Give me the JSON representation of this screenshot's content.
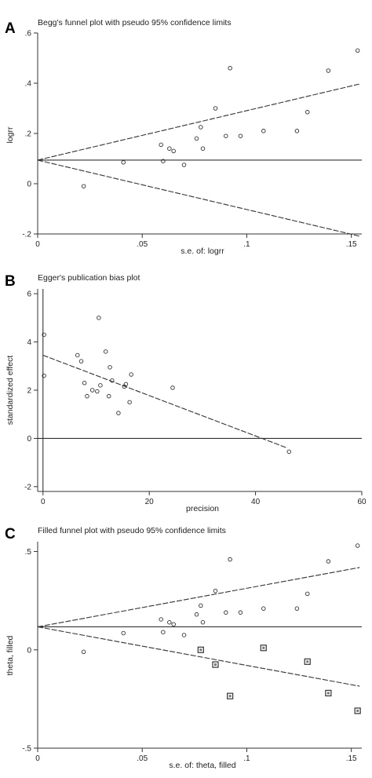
{
  "chart_data": [
    {
      "type": "scatter",
      "panel_label": "A",
      "title": "Begg's funnel plot with pseudo 95% confidence limits",
      "xlabel": "s.e. of: logrr",
      "ylabel": "logrr",
      "xlim": [
        0,
        0.155
      ],
      "ylim": [
        -0.2,
        0.6
      ],
      "xticks": [
        0,
        0.05,
        0.1,
        0.15
      ],
      "xtick_labels": [
        "0",
        ".05",
        ".1",
        ".15"
      ],
      "yticks": [
        -0.2,
        0,
        0.2,
        0.4,
        0.6
      ],
      "ytick_labels": [
        "-.2",
        "0",
        ".2",
        ".4",
        ".6"
      ],
      "series": [
        {
          "marker": "hollow-circle",
          "points": [
            {
              "x": 0.022,
              "y": -0.01
            },
            {
              "x": 0.041,
              "y": 0.085
            },
            {
              "x": 0.059,
              "y": 0.155
            },
            {
              "x": 0.06,
              "y": 0.09
            },
            {
              "x": 0.063,
              "y": 0.14
            },
            {
              "x": 0.065,
              "y": 0.13
            },
            {
              "x": 0.07,
              "y": 0.075
            },
            {
              "x": 0.076,
              "y": 0.18
            },
            {
              "x": 0.078,
              "y": 0.225
            },
            {
              "x": 0.079,
              "y": 0.14
            },
            {
              "x": 0.085,
              "y": 0.3
            },
            {
              "x": 0.09,
              "y": 0.19
            },
            {
              "x": 0.092,
              "y": 0.46
            },
            {
              "x": 0.097,
              "y": 0.19
            },
            {
              "x": 0.108,
              "y": 0.21
            },
            {
              "x": 0.124,
              "y": 0.21
            },
            {
              "x": 0.129,
              "y": 0.285
            },
            {
              "x": 0.139,
              "y": 0.45
            },
            {
              "x": 0.153,
              "y": 0.53
            }
          ]
        }
      ],
      "reference_lines": [
        {
          "style": "solid",
          "from": [
            0,
            0.094
          ],
          "to": [
            0.155,
            0.094
          ]
        },
        {
          "style": "dashed",
          "from": [
            0,
            0.094
          ],
          "to": [
            0.154,
            0.397
          ]
        },
        {
          "style": "dashed",
          "from": [
            0,
            0.094
          ],
          "to": [
            0.154,
            -0.209
          ]
        }
      ]
    },
    {
      "type": "scatter",
      "panel_label": "B",
      "title": "Egger's publication bias plot",
      "xlabel": "precision",
      "ylabel": "standardized effect",
      "xlim": [
        -1,
        60
      ],
      "ylim": [
        -2.2,
        6.2
      ],
      "xticks": [
        0,
        20,
        40,
        60
      ],
      "xtick_labels": [
        "0",
        "20",
        "40",
        "60"
      ],
      "yticks": [
        -2,
        0,
        2,
        4,
        6
      ],
      "ytick_labels": [
        "-2",
        "0",
        "2",
        "4",
        "6"
      ],
      "series": [
        {
          "marker": "hollow-circle",
          "points": [
            {
              "x": 0.2,
              "y": 4.3
            },
            {
              "x": 0.2,
              "y": 2.6
            },
            {
              "x": 6.5,
              "y": 3.45
            },
            {
              "x": 7.2,
              "y": 3.2
            },
            {
              "x": 7.8,
              "y": 2.3
            },
            {
              "x": 8.3,
              "y": 1.75
            },
            {
              "x": 9.3,
              "y": 2.0
            },
            {
              "x": 10.2,
              "y": 1.95
            },
            {
              "x": 10.8,
              "y": 2.2
            },
            {
              "x": 10.5,
              "y": 5.0
            },
            {
              "x": 11.8,
              "y": 3.6
            },
            {
              "x": 12.6,
              "y": 2.95
            },
            {
              "x": 13.0,
              "y": 2.4
            },
            {
              "x": 12.4,
              "y": 1.75
            },
            {
              "x": 14.2,
              "y": 1.05
            },
            {
              "x": 15.3,
              "y": 2.15
            },
            {
              "x": 15.6,
              "y": 2.25
            },
            {
              "x": 16.3,
              "y": 1.5
            },
            {
              "x": 16.6,
              "y": 2.65
            },
            {
              "x": 24.4,
              "y": 2.1
            },
            {
              "x": 46.3,
              "y": -0.55
            }
          ]
        }
      ],
      "reference_lines": [
        {
          "style": "solid",
          "from": [
            -1,
            0
          ],
          "to": [
            60,
            0
          ]
        },
        {
          "style": "solid",
          "from": [
            0,
            -2.2
          ],
          "to": [
            0,
            6.2
          ]
        },
        {
          "style": "dashed",
          "from": [
            0,
            3.45
          ],
          "to": [
            46,
            -0.4
          ]
        }
      ]
    },
    {
      "type": "scatter",
      "panel_label": "C",
      "title": "Filled funnel plot with pseudo 95% confidence limits",
      "xlabel": "s.e. of: theta, filled",
      "ylabel": "theta, filled",
      "xlim": [
        0,
        0.155
      ],
      "ylim": [
        -0.5,
        0.55
      ],
      "xticks": [
        0,
        0.05,
        0.1,
        0.15
      ],
      "xtick_labels": [
        "0",
        ".05",
        ".1",
        ".15"
      ],
      "yticks": [
        -0.5,
        0,
        0.5
      ],
      "ytick_labels": [
        "-.5",
        "0",
        ".5"
      ],
      "series": [
        {
          "marker": "hollow-circle",
          "points": [
            {
              "x": 0.022,
              "y": -0.01
            },
            {
              "x": 0.041,
              "y": 0.085
            },
            {
              "x": 0.059,
              "y": 0.155
            },
            {
              "x": 0.06,
              "y": 0.09
            },
            {
              "x": 0.063,
              "y": 0.14
            },
            {
              "x": 0.065,
              "y": 0.13
            },
            {
              "x": 0.07,
              "y": 0.075
            },
            {
              "x": 0.076,
              "y": 0.18
            },
            {
              "x": 0.078,
              "y": 0.225
            },
            {
              "x": 0.079,
              "y": 0.14
            },
            {
              "x": 0.085,
              "y": 0.3
            },
            {
              "x": 0.09,
              "y": 0.19
            },
            {
              "x": 0.092,
              "y": 0.46
            },
            {
              "x": 0.097,
              "y": 0.19
            },
            {
              "x": 0.108,
              "y": 0.21
            },
            {
              "x": 0.124,
              "y": 0.21
            },
            {
              "x": 0.129,
              "y": 0.285
            },
            {
              "x": 0.139,
              "y": 0.45
            },
            {
              "x": 0.153,
              "y": 0.53
            }
          ]
        },
        {
          "marker": "boxed-square",
          "points": [
            {
              "x": 0.078,
              "y": 0.0
            },
            {
              "x": 0.085,
              "y": -0.075
            },
            {
              "x": 0.092,
              "y": -0.235
            },
            {
              "x": 0.108,
              "y": 0.01
            },
            {
              "x": 0.129,
              "y": -0.06
            },
            {
              "x": 0.139,
              "y": -0.22
            },
            {
              "x": 0.153,
              "y": -0.31
            }
          ]
        }
      ],
      "reference_lines": [
        {
          "style": "solid",
          "from": [
            0,
            0.117
          ],
          "to": [
            0.155,
            0.117
          ]
        },
        {
          "style": "dashed",
          "from": [
            0,
            0.117
          ],
          "to": [
            0.154,
            0.419
          ]
        },
        {
          "style": "dashed",
          "from": [
            0,
            0.117
          ],
          "to": [
            0.154,
            -0.185
          ]
        }
      ]
    }
  ]
}
